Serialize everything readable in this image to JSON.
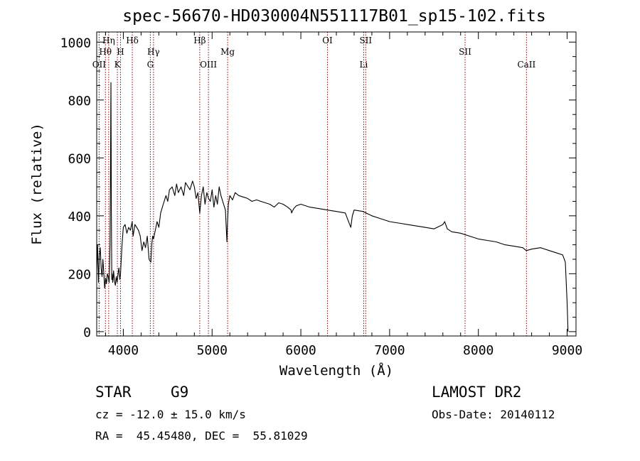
{
  "chart_data": {
    "type": "line",
    "title": "spec-56670-HD030004N551117B01_sp15-102.fits",
    "xlabel": "Wavelength (Å)",
    "ylabel": "Flux (relative)",
    "xlim": [
      3700,
      9100
    ],
    "ylim": [
      -15,
      1035
    ],
    "xticks": [
      4000,
      5000,
      6000,
      7000,
      8000,
      9000
    ],
    "yticks": [
      0,
      200,
      400,
      600,
      800,
      1000
    ],
    "grid": false,
    "series": [
      {
        "color": "#000000",
        "x": [
          3700,
          3710,
          3720,
          3730,
          3740,
          3750,
          3760,
          3770,
          3780,
          3790,
          3800,
          3810,
          3820,
          3830,
          3840,
          3850,
          3855,
          3860,
          3865,
          3870,
          3875,
          3880,
          3885,
          3890,
          3900,
          3910,
          3920,
          3930,
          3940,
          3950,
          3960,
          3968,
          3975,
          3985,
          4000,
          4020,
          4040,
          4060,
          4080,
          4100,
          4110,
          4130,
          4150,
          4170,
          4190,
          4210,
          4230,
          4250,
          4270,
          4290,
          4310,
          4320,
          4330,
          4340,
          4360,
          4380,
          4400,
          4420,
          4450,
          4480,
          4500,
          4520,
          4550,
          4580,
          4600,
          4620,
          4650,
          4680,
          4700,
          4720,
          4750,
          4780,
          4800,
          4820,
          4840,
          4861,
          4880,
          4900,
          4920,
          4940,
          4960,
          4980,
          5000,
          5020,
          5040,
          5060,
          5080,
          5100,
          5120,
          5150,
          5167,
          5172,
          5183,
          5200,
          5230,
          5260,
          5300,
          5350,
          5400,
          5450,
          5500,
          5550,
          5600,
          5650,
          5700,
          5750,
          5800,
          5850,
          5890,
          5895,
          5920,
          5950,
          6000,
          6100,
          6200,
          6300,
          6400,
          6500,
          6563,
          6580,
          6600,
          6700,
          6800,
          6900,
          7000,
          7100,
          7200,
          7300,
          7400,
          7500,
          7600,
          7620,
          7650,
          7700,
          7800,
          7900,
          8000,
          8100,
          8200,
          8300,
          8400,
          8500,
          8540,
          8600,
          8700,
          8800,
          8900,
          8950,
          8980,
          9000,
          9010
        ],
        "y": [
          210,
          300,
          170,
          260,
          290,
          220,
          190,
          250,
          200,
          150,
          185,
          165,
          200,
          190,
          170,
          300,
          500,
          860,
          420,
          180,
          200,
          170,
          185,
          210,
          175,
          160,
          190,
          170,
          200,
          220,
          180,
          200,
          240,
          300,
          360,
          370,
          340,
          360,
          350,
          380,
          330,
          370,
          360,
          350,
          330,
          280,
          310,
          290,
          330,
          250,
          240,
          300,
          330,
          320,
          350,
          380,
          360,
          410,
          440,
          470,
          450,
          490,
          500,
          470,
          510,
          480,
          500,
          470,
          515,
          505,
          490,
          520,
          500,
          460,
          480,
          410,
          470,
          500,
          440,
          480,
          460,
          450,
          490,
          430,
          470,
          440,
          500,
          470,
          450,
          420,
          310,
          360,
          440,
          470,
          455,
          480,
          470,
          465,
          460,
          450,
          455,
          450,
          445,
          440,
          430,
          445,
          440,
          430,
          420,
          410,
          425,
          435,
          440,
          430,
          425,
          420,
          415,
          410,
          360,
          400,
          420,
          415,
          400,
          390,
          380,
          375,
          370,
          365,
          360,
          355,
          370,
          380,
          355,
          345,
          340,
          330,
          320,
          315,
          310,
          300,
          295,
          290,
          280,
          285,
          290,
          280,
          270,
          265,
          240,
          100,
          0
        ]
      }
    ],
    "annotations": [
      {
        "label": "OII",
        "x": 3727,
        "row": 3
      },
      {
        "label": "Hθ",
        "x": 3798,
        "row": 2
      },
      {
        "label": "Hη",
        "x": 3835,
        "row": 1
      },
      {
        "label": "K",
        "x": 3933,
        "row": 3
      },
      {
        "label": "H",
        "x": 3968,
        "row": 2
      },
      {
        "label": "Hδ",
        "x": 4101,
        "row": 1
      },
      {
        "label": "G",
        "x": 4304,
        "row": 3
      },
      {
        "label": "Hγ",
        "x": 4340,
        "row": 2
      },
      {
        "label": "Hβ",
        "x": 4861,
        "row": 1
      },
      {
        "label": "OIII",
        "x": 4959,
        "row": 3
      },
      {
        "label": "Mg",
        "x": 5175,
        "row": 2
      },
      {
        "label": "OI",
        "x": 6300,
        "row": 1
      },
      {
        "label": "Li",
        "x": 6708,
        "row": 3
      },
      {
        "label": "SII",
        "x": 6731,
        "row": 1
      },
      {
        "label": "SII",
        "x": 7850,
        "row": 2
      },
      {
        "label": "CaII",
        "x": 8542,
        "row": 3
      }
    ],
    "line_color": "#8b0000"
  },
  "info": {
    "object_type": "STAR",
    "subclass": "G9",
    "survey": "LAMOST DR2",
    "redshift": "cz = -12.0 ± 15.0 km/s",
    "obs_date": "Obs-Date: 20140112",
    "coords": "RA =  45.45480, DEC =  55.81029"
  }
}
